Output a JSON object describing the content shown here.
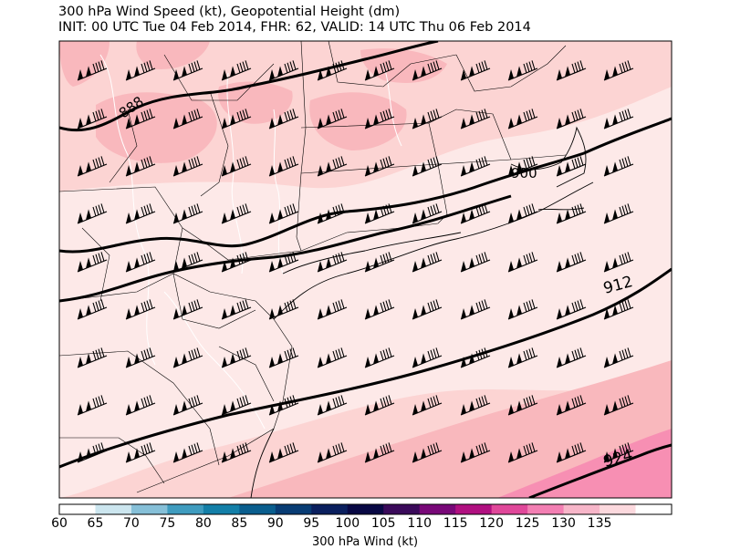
{
  "header": {
    "title": "300 hPa Wind Speed (kt), Geopotential Height (dm)",
    "subtitle": "INIT: 00 UTC Tue 04 Feb 2014, FHR: 62, VALID: 14 UTC Thu 06 Feb 2014"
  },
  "map": {
    "region": "Northeastern United States / southern New England",
    "contours": [
      {
        "value": "888",
        "label": "888"
      },
      {
        "value": "900",
        "label": "900"
      },
      {
        "value": "912",
        "label": "912"
      },
      {
        "value": "924",
        "label": "924"
      }
    ],
    "wind_barbs": "southwesterly, about 120-135 kt",
    "colors": {
      "lightest": "#fde9e8",
      "light": "#fcd4d3",
      "medium": "#f9b8bd",
      "strong": "#f78fb3",
      "contour": "#000000",
      "borders": "#000000",
      "rivers": "#ffffff"
    }
  },
  "colorbar": {
    "label": "300 hPa Wind (kt)",
    "ticks": [
      "60",
      "65",
      "70",
      "75",
      "80",
      "85",
      "90",
      "95",
      "100",
      "105",
      "110",
      "115",
      "120",
      "125",
      "130",
      "135"
    ],
    "colors": [
      "#ffffff",
      "#cce6ef",
      "#86c0d8",
      "#3f9cbf",
      "#137fa8",
      "#0a5e8e",
      "#083c74",
      "#0a1f5e",
      "#080844",
      "#3a0a5a",
      "#780878",
      "#b01080",
      "#e0489a",
      "#f37fb3",
      "#f7b6c9",
      "#fcd9de",
      "#ffffff"
    ]
  }
}
